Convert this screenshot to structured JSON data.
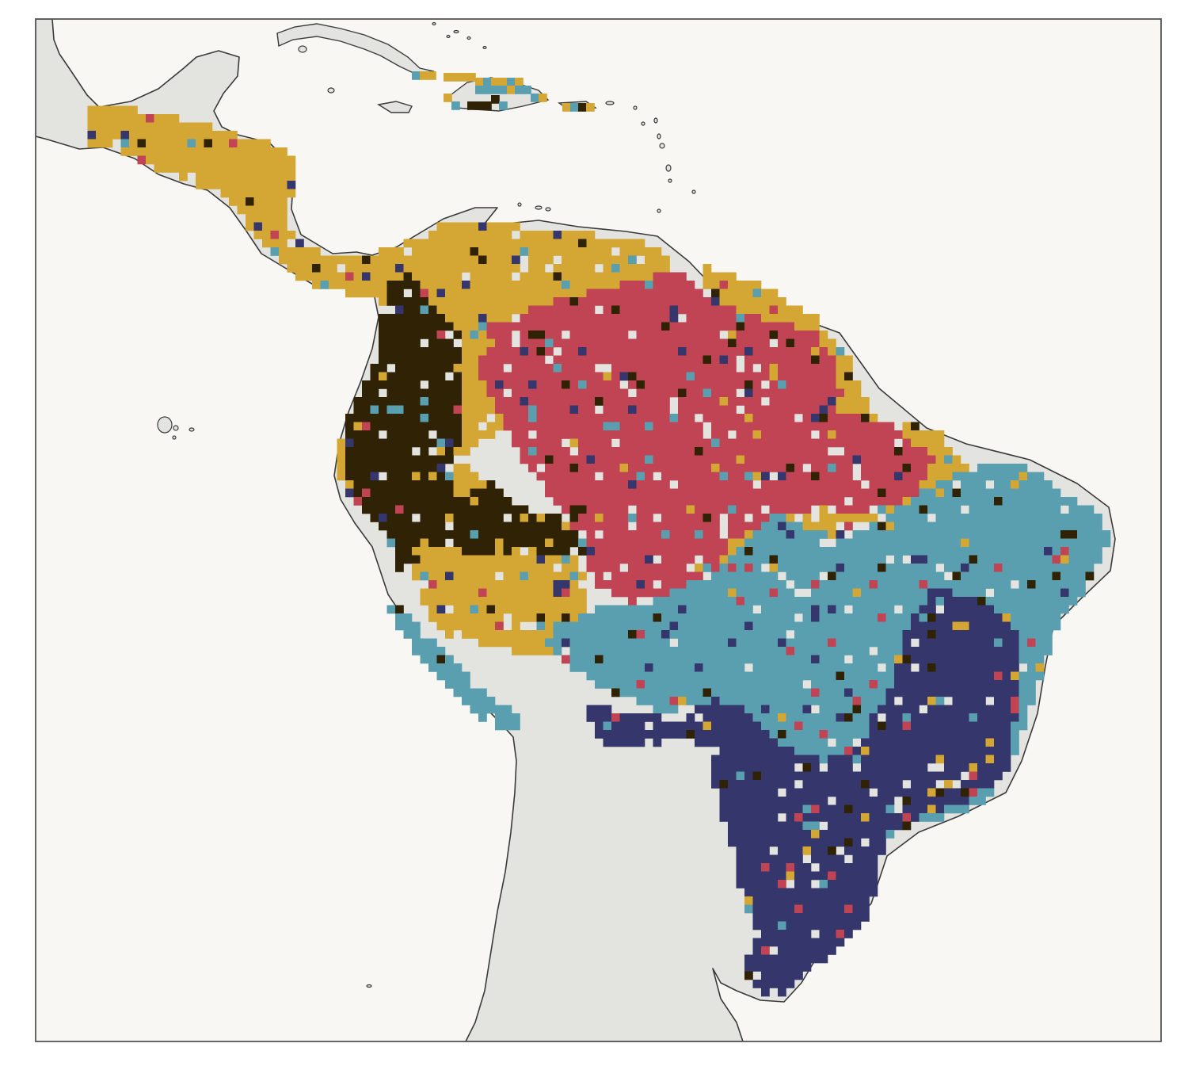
{
  "map": {
    "colors": {
      "ocean": "#f8f7f4",
      "land": "#e3e4e0",
      "coast": "#3a3a3a",
      "frame": "#555555",
      "gold": "#d4a634",
      "red": "#c04454",
      "teal": "#5a9faf",
      "navy": "#35366c",
      "dark": "#2f2205"
    },
    "classes": [
      "gold",
      "red",
      "teal",
      "navy",
      "dark"
    ]
  }
}
